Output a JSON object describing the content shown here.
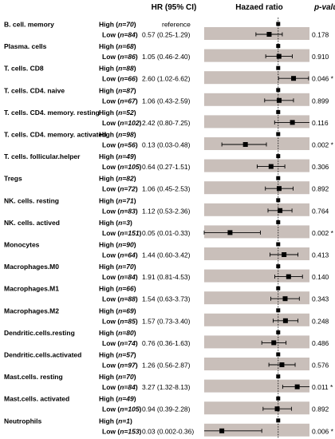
{
  "chart_data": {
    "type": "forest",
    "headers": {
      "hr_ci": "HR (95% CI)",
      "plot": "Hazaed ratio",
      "pvalue": "p-value"
    },
    "ref_label": "reference",
    "reference_line": 1,
    "x_scale": "log",
    "xlim": [
      0.01,
      7
    ],
    "rows": [
      {
        "cell": "B. cell. memory",
        "high": "High (n=70)",
        "low": "Low (n=84)",
        "hr": 0.57,
        "lo": 0.25,
        "hi": 1.29,
        "ci_text": "0.57 (0.25-1.29)",
        "p": "0.178"
      },
      {
        "cell": "Plasma. cells",
        "high": "High (n=68)",
        "low": "Low (n=86)",
        "hr": 1.05,
        "lo": 0.46,
        "hi": 2.4,
        "ci_text": "1.05 (0.46-2.40)",
        "p": "0.910"
      },
      {
        "cell": "T. cells. CD8",
        "high": "High (n=88)",
        "low": "Low (n=66)",
        "hr": 2.6,
        "lo": 1.02,
        "hi": 6.62,
        "ci_text": "2.60 (1.02-6.62)",
        "p": "0.046 *"
      },
      {
        "cell": "T. cells. CD4. naive",
        "high": "High (n=87)",
        "low": "Low (n=67)",
        "hr": 1.06,
        "lo": 0.43,
        "hi": 2.59,
        "ci_text": "1.06 (0.43-2.59)",
        "p": "0.899"
      },
      {
        "cell": "T. cells. CD4. memory. resting",
        "high": "High (n=52)",
        "low": "Low (n=102)",
        "hr": 2.42,
        "lo": 0.8,
        "hi": 7.25,
        "ci_text": "2.42 (0.80-7.25)",
        "p": "0.116"
      },
      {
        "cell": "T. cells. CD4. memory. activated",
        "high": "High (n=98)",
        "low": "Low (n=56)",
        "hr": 0.13,
        "lo": 0.03,
        "hi": 0.48,
        "ci_text": "0.13 (0.03-0.48)",
        "p": "0.002 *"
      },
      {
        "cell": "T. cells. follicular.helper",
        "high": "High (n=49)",
        "low": "Low (n=105)",
        "hr": 0.64,
        "lo": 0.27,
        "hi": 1.51,
        "ci_text": "0.64 (0.27-1.51)",
        "p": "0.306"
      },
      {
        "cell": "Tregs",
        "high": "High (n=82)",
        "low": "Low (n=72)",
        "hr": 1.06,
        "lo": 0.45,
        "hi": 2.53,
        "ci_text": "1.06 (0.45-2.53)",
        "p": "0.892"
      },
      {
        "cell": "NK. cells. resting",
        "high": "High (n=71)",
        "low": "Low (n=83)",
        "hr": 1.12,
        "lo": 0.53,
        "hi": 2.36,
        "ci_text": "1.12 (0.53-2.36)",
        "p": "0.764"
      },
      {
        "cell": "NK. cells. actived",
        "high": "High (n=3)",
        "low": "Low (n=151)",
        "hr": 0.05,
        "lo": 0.01,
        "hi": 0.33,
        "ci_text": "0.05 (0.01-0.33)",
        "p": "0.002 *"
      },
      {
        "cell": "Monocytes",
        "high": "High (n=90)",
        "low": "Low (n=64)",
        "hr": 1.44,
        "lo": 0.6,
        "hi": 3.42,
        "ci_text": "1.44 (0.60-3.42)",
        "p": "0.413"
      },
      {
        "cell": "Macrophages.M0",
        "high": "High (n=70)",
        "low": "Low (n=84)",
        "hr": 1.91,
        "lo": 0.81,
        "hi": 4.53,
        "ci_text": "1.91 (0.81-4.53)",
        "p": "0.140"
      },
      {
        "cell": "Macrophages.M1",
        "high": "High (n=66)",
        "low": "Low (n=88)",
        "hr": 1.54,
        "lo": 0.63,
        "hi": 3.73,
        "ci_text": "1.54 (0.63-3.73)",
        "p": "0.343"
      },
      {
        "cell": "Macrophages.M2",
        "high": "High (n=69)",
        "low": "Low (n=85)",
        "hr": 1.57,
        "lo": 0.73,
        "hi": 3.4,
        "ci_text": "1.57 (0.73-3.40)",
        "p": "0.248"
      },
      {
        "cell": "Dendritic.cells.resting",
        "high": "High (n=80)",
        "low": "Low (n=74)",
        "hr": 0.76,
        "lo": 0.36,
        "hi": 1.63,
        "ci_text": "0.76 (0.36-1.63)",
        "p": "0.486"
      },
      {
        "cell": "Dendritic.cells.activated",
        "high": "High (n=57)",
        "low": "Low (n=97)",
        "hr": 1.26,
        "lo": 0.56,
        "hi": 2.87,
        "ci_text": "1.26 (0.56-2.87)",
        "p": "0.576"
      },
      {
        "cell": "Mast.cells. resting",
        "high": "High (n=70)",
        "low": "Low (n=84)",
        "hr": 3.27,
        "lo": 1.32,
        "hi": 8.13,
        "ci_text": "3.27 (1.32-8.13)",
        "p": "0.011 *"
      },
      {
        "cell": "Mast.cells. activated",
        "high": "High (n=49)",
        "low": "Low (n=105)",
        "hr": 0.94,
        "lo": 0.39,
        "hi": 2.28,
        "ci_text": "0.94 (0.39-2.28)",
        "p": "0.892"
      },
      {
        "cell": "Neutrophils",
        "high": "High (n=1)",
        "low": "Low (n=153)",
        "hr": 0.03,
        "lo": 0.002,
        "hi": 0.36,
        "ci_text": "0.03 (0.002-0.36)",
        "p": "0.006 *"
      }
    ],
    "colors": {
      "band": "#c9bfba",
      "marker": "#000000",
      "reference_line": "#000000"
    }
  }
}
